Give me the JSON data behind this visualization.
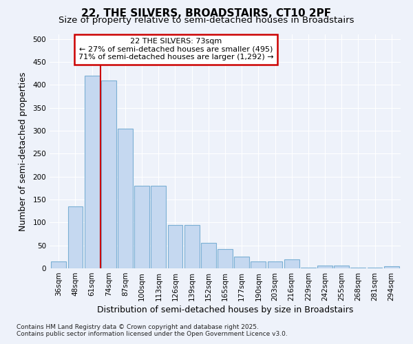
{
  "title": "22, THE SILVERS, BROADSTAIRS, CT10 2PF",
  "subtitle": "Size of property relative to semi-detached houses in Broadstairs",
  "xlabel": "Distribution of semi-detached houses by size in Broadstairs",
  "ylabel": "Number of semi-detached properties",
  "footer_line1": "Contains HM Land Registry data © Crown copyright and database right 2025.",
  "footer_line2": "Contains public sector information licensed under the Open Government Licence v3.0.",
  "bar_labels": [
    "36sqm",
    "48sqm",
    "61sqm",
    "74sqm",
    "87sqm",
    "100sqm",
    "113sqm",
    "126sqm",
    "139sqm",
    "152sqm",
    "165sqm",
    "177sqm",
    "190sqm",
    "203sqm",
    "216sqm",
    "229sqm",
    "242sqm",
    "255sqm",
    "268sqm",
    "281sqm",
    "294sqm"
  ],
  "bar_values": [
    15,
    135,
    420,
    410,
    305,
    180,
    180,
    95,
    95,
    55,
    42,
    26,
    15,
    15,
    20,
    2,
    6,
    6,
    2,
    2,
    4
  ],
  "bar_color": "#c5d8f0",
  "bar_edge_color": "#7aafd4",
  "property_label": "22 THE SILVERS: 73sqm",
  "annotation_line1": "← 27% of semi-detached houses are smaller (495)",
  "annotation_line2": "71% of semi-detached houses are larger (1,292) →",
  "vline_color": "#cc0000",
  "vline_x": 2.5,
  "annotation_box_color": "#cc0000",
  "ylim": [
    0,
    510
  ],
  "yticks": [
    0,
    50,
    100,
    150,
    200,
    250,
    300,
    350,
    400,
    450,
    500
  ],
  "bg_color": "#eef2fa",
  "grid_color": "#ffffff",
  "title_fontsize": 11,
  "subtitle_fontsize": 9.5,
  "axis_label_fontsize": 9,
  "tick_fontsize": 7.5,
  "footer_fontsize": 6.5
}
